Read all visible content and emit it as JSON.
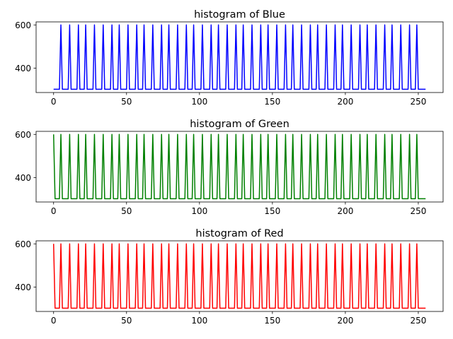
{
  "chart_data": [
    {
      "type": "line",
      "title": "histogram of Blue",
      "xlabel": "",
      "ylabel": "",
      "color": "#0000ff",
      "xlim": [
        -12,
        267
      ],
      "ylim": [
        287,
        614
      ],
      "xticks": [
        0,
        50,
        100,
        150,
        200,
        250
      ],
      "yticks": [
        400,
        600
      ],
      "grid": false,
      "legend": "none",
      "baseline": 302,
      "peak": 600,
      "x_start": 0,
      "x_end": 255,
      "peaks_x": [
        5,
        11,
        17,
        22,
        28,
        34,
        40,
        45,
        51,
        57,
        62,
        68,
        74,
        79,
        85,
        91,
        96,
        102,
        108,
        113,
        119,
        125,
        130,
        136,
        142,
        147,
        153,
        159,
        164,
        170,
        176,
        181,
        187,
        193,
        198,
        204,
        210,
        215,
        221,
        227,
        232,
        238,
        244,
        249
      ]
    },
    {
      "type": "line",
      "title": "histogram of Green",
      "xlabel": "",
      "ylabel": "",
      "color": "#008000",
      "xlim": [
        -12,
        267
      ],
      "ylim": [
        287,
        614
      ],
      "xticks": [
        0,
        50,
        100,
        150,
        200,
        250
      ],
      "yticks": [
        400,
        600
      ],
      "grid": false,
      "legend": "none",
      "baseline": 302,
      "peak": 600,
      "x_start": 0,
      "x_end": 255,
      "peaks_x": [
        0,
        5,
        11,
        17,
        22,
        28,
        34,
        40,
        45,
        51,
        57,
        62,
        68,
        74,
        79,
        85,
        91,
        96,
        102,
        108,
        113,
        119,
        125,
        130,
        136,
        142,
        147,
        153,
        159,
        164,
        170,
        176,
        181,
        187,
        193,
        198,
        204,
        210,
        215,
        221,
        227,
        232,
        238,
        244,
        249
      ]
    },
    {
      "type": "line",
      "title": "histogram of Red",
      "xlabel": "",
      "ylabel": "",
      "color": "#ff0000",
      "xlim": [
        -12,
        267
      ],
      "ylim": [
        287,
        614
      ],
      "xticks": [
        0,
        50,
        100,
        150,
        200,
        250
      ],
      "yticks": [
        400,
        600
      ],
      "grid": false,
      "legend": "none",
      "baseline": 302,
      "peak": 600,
      "x_start": 0,
      "x_end": 255,
      "peaks_x": [
        0,
        5,
        11,
        17,
        22,
        28,
        34,
        40,
        45,
        51,
        57,
        62,
        68,
        74,
        79,
        85,
        91,
        96,
        102,
        108,
        113,
        119,
        125,
        130,
        136,
        142,
        147,
        153,
        159,
        164,
        170,
        176,
        181,
        187,
        193,
        198,
        204,
        210,
        215,
        221,
        227,
        232,
        238,
        244,
        249
      ]
    }
  ]
}
